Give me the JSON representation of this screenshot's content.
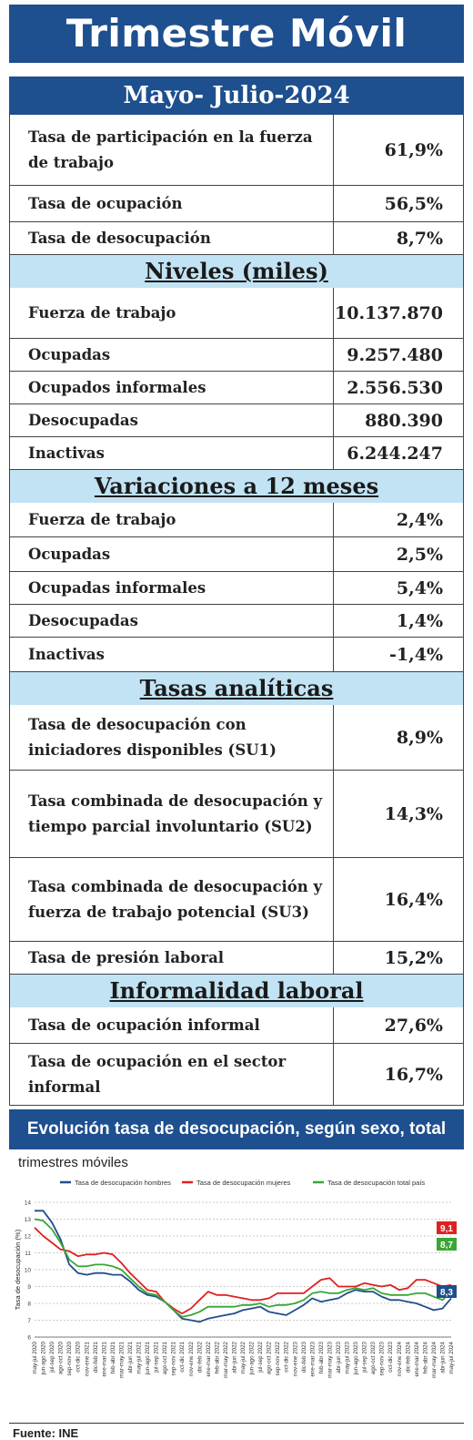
{
  "header": {
    "title": "Trimestre Móvil",
    "period": "Mayo- Julio-2024"
  },
  "sections": [
    {
      "title": "",
      "rows": [
        {
          "label": "Tasa de participación en la fuerza de trabajo",
          "value": "61,9%"
        },
        {
          "label": "Tasa de ocupación",
          "value": "56,5%"
        },
        {
          "label": "Tasa de desocupación",
          "value": "8,7%"
        }
      ]
    },
    {
      "title": "Niveles  (miles)",
      "rows": [
        {
          "label": "Fuerza de trabajo",
          "value": "10.137.870"
        },
        {
          "label": "Ocupadas",
          "value": "9.257.480"
        },
        {
          "label": "Ocupados informales",
          "value": "2.556.530"
        },
        {
          "label": "Desocupadas",
          "value": "880.390"
        },
        {
          "label": "Inactivas",
          "value": "6.244.247"
        }
      ]
    },
    {
      "title": "Variaciones a 12 meses",
      "rows": [
        {
          "label": "Fuerza de trabajo",
          "value": "2,4%"
        },
        {
          "label": "Ocupadas",
          "value": "2,5%"
        },
        {
          "label": "Ocupadas informales",
          "value": "5,4%"
        },
        {
          "label": "Desocupadas",
          "value": "1,4%"
        },
        {
          "label": "Inactivas",
          "value": "-1,4%"
        }
      ]
    },
    {
      "title": "Tasas  analíticas",
      "rows": [
        {
          "label": "Tasa de desocupación con iniciadores disponibles (SU1)",
          "value": "8,9%"
        },
        {
          "label": "Tasa combinada de desocupación y tiempo parcial involuntario (SU2)",
          "value": "14,3%"
        },
        {
          "label": "Tasa combinada de desocupación y fuerza de trabajo potencial (SU3)",
          "value": "16,4%"
        },
        {
          "label": "Tasa de presión laboral",
          "value": "15,2%"
        }
      ]
    },
    {
      "title": "Informalidad  laboral",
      "rows": [
        {
          "label": "Tasa de ocupación informal",
          "value": "27,6%"
        },
        {
          "label": "Tasa de ocupación en el sector informal",
          "value": "16,7%"
        }
      ]
    }
  ],
  "chart_title": "Evolución tasa de desocupación, según sexo, total país",
  "chart_subtitle": "trimestres móviles",
  "source": "Fuente: INE",
  "chart_data": {
    "type": "line",
    "title": "",
    "ylabel": "Tasa de desocupación (%)",
    "xlabel": "",
    "ylim": [
      6,
      14
    ],
    "yticks": [
      6,
      7,
      8,
      9,
      10,
      11,
      12,
      13,
      14
    ],
    "grid": true,
    "legend": "top",
    "x": [
      "may-jul 2020",
      "jun-ago 2020",
      "jul-sep 2020",
      "ago-oct 2020",
      "sep-nov 2020",
      "oct-dic 2020",
      "nov-ene 2021",
      "dic-feb 2021",
      "ene-mar 2021",
      "feb-abr 2021",
      "mar-may 2021",
      "abr-jun 2021",
      "may-jul 2021",
      "jun-ago 2021",
      "jul-sep 2021",
      "ago-oct 2021",
      "sep-nov 2021",
      "oct-dic 2021",
      "nov-ene 2022",
      "dic-feb 2022",
      "ene-mar 2022",
      "feb-abr 2022",
      "mar-may 2022",
      "abr-jun 2022",
      "may-jul 2022",
      "jun-ago 2022",
      "jul-sep 2022",
      "ago-oct 2022",
      "sep-nov 2022",
      "oct-dic 2022",
      "nov-ene 2023",
      "dic-feb 2023",
      "ene-mar 2023",
      "feb-abr 2023",
      "mar-may 2023",
      "abr-jun 2023",
      "may-jul 2023",
      "jun-ago 2023",
      "jul-sep 2023",
      "ago-oct 2023",
      "sep-nov 2023",
      "oct-dic 2023",
      "nov-ene 2024",
      "dic-feb 2024",
      "ene-mar 2024",
      "feb-abr 2024",
      "mar-may 2024",
      "abr-jun 2024",
      "may-jul 2024"
    ],
    "xticks_shown": [
      "may-jul 2020",
      "jun-ago 2020",
      "jul-sep 2020",
      "ago-oct 2020",
      "sep-nov 2020",
      "oct-dic 2020",
      "nov-ene 2021",
      "dic-feb 2021",
      "ene-mar 2021",
      "feb-abr 2021",
      "mar-may 2021",
      "abr-jun 2021",
      "may-jul 2021",
      "jun-ago 2021",
      "jul-sep 2021",
      "ago-oct 2021",
      "sep-nov 2021",
      "oct-dic 2021",
      "nov-ene 2022",
      "dic-feb 2022",
      "ene-mar 2022",
      "feb-abr 2022",
      "mar-may 2022",
      "abr-jun 2022",
      "may-jul 2022",
      "jun-ago 2022",
      "jul-sep 2022",
      "ago-oct 2022",
      "sep-nov 2022",
      "oct-dic 2022",
      "nov-ene 2023",
      "dic-feb 2023",
      "ene-mar 2023",
      "feb-abr 2023",
      "mar-may 2023",
      "abr-jun 2023",
      "may-jul 2023",
      "jun-ago 2023",
      "jul-sep 2023",
      "ago-oct 2023",
      "sep-nov 2023",
      "oct-dic 2023",
      "nov-ene 2024",
      "dic-feb 2024",
      "ene-mar 2024",
      "feb-abr 2024",
      "mar-may 2024",
      "abr-jun 2024",
      "may-jul 2024"
    ],
    "series": [
      {
        "name": "Tasa de desocupación hombres",
        "color": "#1f4e8c",
        "end_label": "8,3",
        "values": [
          13.5,
          13.5,
          12.8,
          11.8,
          10.3,
          9.8,
          9.7,
          9.8,
          9.8,
          9.7,
          9.7,
          9.3,
          8.8,
          8.5,
          8.4,
          8.1,
          7.6,
          7.1,
          7.0,
          6.9,
          7.1,
          7.2,
          7.3,
          7.4,
          7.6,
          7.7,
          7.8,
          7.5,
          7.4,
          7.3,
          7.6,
          7.9,
          8.3,
          8.1,
          8.2,
          8.3,
          8.6,
          8.8,
          8.7,
          8.7,
          8.4,
          8.2,
          8.2,
          8.1,
          8.0,
          7.8,
          7.6,
          7.7,
          8.3
        ]
      },
      {
        "name": "Tasa de desocupación mujeres",
        "color": "#e02020",
        "end_label": "9,1",
        "values": [
          12.5,
          12.0,
          11.6,
          11.2,
          11.1,
          10.8,
          10.9,
          10.9,
          11.0,
          10.9,
          10.4,
          9.8,
          9.3,
          8.8,
          8.7,
          8.1,
          7.7,
          7.4,
          7.7,
          8.2,
          8.7,
          8.5,
          8.5,
          8.4,
          8.3,
          8.2,
          8.2,
          8.3,
          8.6,
          8.6,
          8.6,
          8.6,
          9.0,
          9.4,
          9.5,
          9.0,
          9.0,
          9.0,
          9.2,
          9.1,
          9.0,
          9.1,
          8.8,
          8.9,
          9.4,
          9.4,
          9.2,
          9.0,
          9.1
        ]
      },
      {
        "name": "Tasa de desocupación total país",
        "color": "#3aa635",
        "end_label": "8,7",
        "values": [
          13.0,
          12.9,
          12.4,
          11.6,
          10.6,
          10.2,
          10.2,
          10.3,
          10.3,
          10.2,
          10.0,
          9.5,
          9.0,
          8.6,
          8.5,
          8.1,
          7.6,
          7.2,
          7.3,
          7.5,
          7.8,
          7.8,
          7.8,
          7.8,
          7.9,
          7.9,
          8.0,
          7.8,
          7.9,
          7.9,
          8.0,
          8.2,
          8.6,
          8.7,
          8.6,
          8.6,
          8.8,
          8.9,
          8.8,
          8.9,
          8.6,
          8.5,
          8.5,
          8.5,
          8.6,
          8.6,
          8.4,
          8.2,
          8.7
        ]
      }
    ]
  }
}
